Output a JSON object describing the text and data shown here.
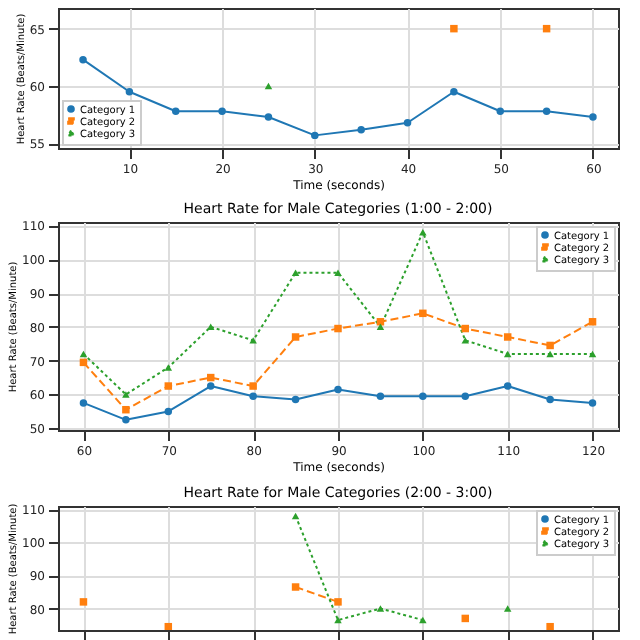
{
  "chart_data": [
    {
      "type": "line",
      "ylabel": "Heart Rate (Beats/Minute)",
      "xlabel": "Time (seconds)",
      "x": [
        5,
        10,
        15,
        20,
        25,
        30,
        35,
        40,
        45,
        50,
        55,
        60
      ],
      "xlim": [
        2.3,
        62.7
      ],
      "xticks": [
        10,
        20,
        30,
        40,
        50,
        60
      ],
      "ylim": [
        54.6,
        66.8
      ],
      "yticks": [
        55,
        60,
        65
      ],
      "grid": true,
      "legend": "bottom left",
      "series": [
        {
          "name": "Category 1",
          "color": "#1f77b4",
          "marker": "circle",
          "line_style": "solid",
          "values": [
            62.3,
            59.5,
            57.8,
            57.8,
            57.3,
            55.7,
            56.2,
            56.8,
            59.5,
            57.8,
            57.8,
            57.3
          ]
        },
        {
          "name": "Category 2",
          "type": "scatter",
          "color": "#ff7f0e",
          "marker": "square",
          "line_style": "dashed",
          "values": [
            null,
            null,
            null,
            null,
            null,
            null,
            null,
            null,
            65,
            null,
            65,
            null
          ]
        },
        {
          "name": "Category 3",
          "type": "scatter",
          "color": "#2ca02c",
          "marker": "triangle",
          "line_style": "dotted",
          "values": [
            null,
            null,
            null,
            null,
            60,
            null,
            null,
            null,
            null,
            null,
            null,
            null
          ]
        }
      ]
    },
    {
      "type": "line",
      "title": "Heart Rate for Male Categories (1:00 - 2:00)",
      "ylabel": "Heart Rate (Beats/Minute)",
      "xlabel": "Time (seconds)",
      "x": [
        60,
        65,
        70,
        75,
        80,
        85,
        90,
        95,
        100,
        105,
        110,
        115,
        120
      ],
      "xlim": [
        57,
        123
      ],
      "xticks": [
        60,
        70,
        80,
        90,
        100,
        110,
        120
      ],
      "ylim": [
        49.5,
        111
      ],
      "yticks": [
        50,
        60,
        70,
        80,
        90,
        100,
        110
      ],
      "grid": true,
      "legend": "top right",
      "series": [
        {
          "name": "Category 1",
          "color": "#1f77b4",
          "marker": "circle",
          "line_style": "solid",
          "values": [
            57.5,
            52.5,
            55,
            62.5,
            59.5,
            58.5,
            61.5,
            59.5,
            59.5,
            59.5,
            62.5,
            58.5,
            57.5
          ]
        },
        {
          "name": "Category 2",
          "color": "#ff7f0e",
          "marker": "square",
          "line_style": "dashed",
          "values": [
            69.5,
            55.5,
            62.5,
            65,
            62.5,
            77,
            79.5,
            81.5,
            84,
            79.5,
            77,
            74.5,
            81.5
          ]
        },
        {
          "name": "Category 3",
          "color": "#2ca02c",
          "marker": "triangle",
          "line_style": "dotted",
          "values": [
            72,
            60,
            68,
            80,
            76,
            96,
            96,
            80,
            108,
            76,
            72,
            72,
            72
          ]
        }
      ]
    },
    {
      "type": "line",
      "title": "Heart Rate for Male Categories (2:00 - 3:00)",
      "ylabel": "Heart Rate (Beats/Minute)",
      "categories": [
        null,
        null,
        null,
        null,
        null,
        null,
        null,
        null,
        null,
        null,
        null,
        null,
        null
      ],
      "ylim": [
        73.5,
        111
      ],
      "yticks": [
        80,
        90,
        100,
        110
      ],
      "grid": true,
      "legend": "top right",
      "tick_labels": "y",
      "series": [
        {
          "name": "Category 1",
          "color": "#1f77b4",
          "marker": "circle",
          "line_style": "solid",
          "values": [
            null,
            null,
            null,
            null,
            null,
            null,
            null,
            null,
            null,
            null,
            null,
            null,
            null
          ]
        },
        {
          "name": "Category 2",
          "color": "#ff7f0e",
          "marker": "square",
          "line_style": "dashed",
          "values": [
            82,
            null,
            74.5,
            null,
            null,
            86.5,
            82,
            null,
            null,
            77,
            null,
            74.5,
            null
          ]
        },
        {
          "name": "Category 3",
          "color": "#2ca02c",
          "marker": "triangle",
          "line_style": "dotted",
          "values": [
            null,
            null,
            null,
            null,
            null,
            108,
            76.5,
            80,
            76.5,
            null,
            80,
            null,
            null
          ]
        }
      ]
    }
  ]
}
